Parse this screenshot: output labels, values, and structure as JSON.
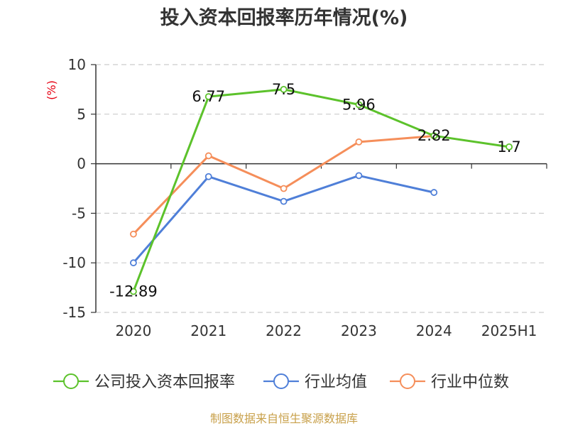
{
  "title": "投入资本回报率历年情况(%)",
  "source": "制图数据来自恒生聚源数据库",
  "colors": {
    "grid": "#cccccc",
    "axis": "#333333",
    "ylabel": "#e60012",
    "source": "#c8a04a"
  },
  "chart_data": {
    "type": "line",
    "title": "投入资本回报率历年情况(%)",
    "ylabel": "(%)",
    "xlabel": "",
    "categories": [
      "2020",
      "2021",
      "2022",
      "2023",
      "2024",
      "2025H1"
    ],
    "ylim": [
      -15,
      10
    ],
    "yticks": [
      "10",
      "5",
      "0",
      "-5",
      "-10",
      "-15"
    ],
    "grid": true,
    "legend_position": "bottom",
    "series": [
      {
        "name": "公司投入资本回报率",
        "color": "#5cc22b",
        "values": [
          -12.89,
          6.77,
          7.5,
          5.96,
          2.82,
          1.7
        ],
        "labels": [
          "-12.89",
          "6.77",
          "7.5",
          "5.96",
          "2.82",
          "1.7"
        ]
      },
      {
        "name": "行业均值",
        "color": "#4f7fd8",
        "values": [
          -10.0,
          -1.3,
          -3.8,
          -1.2,
          -2.9,
          null
        ]
      },
      {
        "name": "行业中位数",
        "color": "#f58e5a",
        "values": [
          -7.1,
          0.8,
          -2.5,
          2.2,
          2.8,
          null
        ]
      }
    ]
  }
}
